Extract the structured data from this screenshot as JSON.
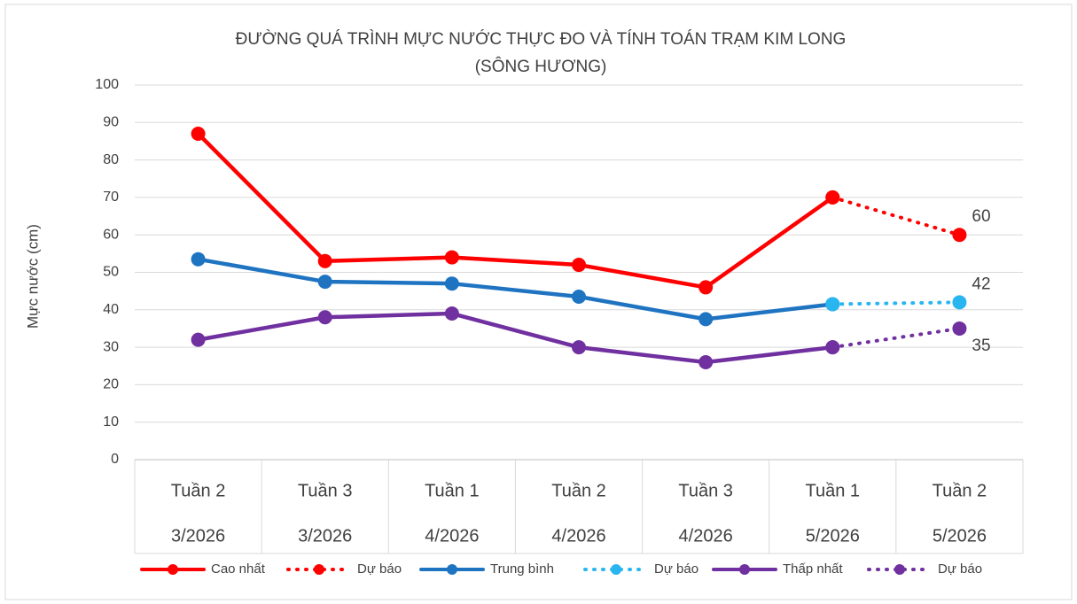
{
  "chart_data": {
    "type": "line",
    "title": [
      "ĐƯỜNG QUÁ TRÌNH MỰC NƯỚC THỰC ĐO VÀ TÍNH TOÁN TRẠM KIM LONG",
      "(SÔNG HƯƠNG)"
    ],
    "y_label": "Mực nước (cm)",
    "categories": [
      [
        "Tuần 2",
        "3/2026"
      ],
      [
        "Tuần 3",
        "3/2026"
      ],
      [
        "Tuần 1",
        "4/2026"
      ],
      [
        "Tuần 2",
        "4/2026"
      ],
      [
        "Tuần 3",
        "4/2026"
      ],
      [
        "Tuần 1",
        "5/2026"
      ],
      [
        "Tuần 2",
        "5/2026"
      ]
    ],
    "series": [
      {
        "name": "Cao nhất",
        "color": "#ff0000",
        "style": "solid",
        "values": [
          87,
          53,
          54,
          52,
          46,
          70,
          null
        ]
      },
      {
        "name": "Dự báo",
        "color": "#ff0000",
        "style": "dotted",
        "values": [
          null,
          null,
          null,
          null,
          null,
          70,
          60
        ]
      },
      {
        "name": "Trung bình",
        "color": "#1f74c2",
        "style": "solid",
        "values": [
          53.5,
          47.5,
          47,
          43.5,
          37.5,
          41.5,
          null
        ]
      },
      {
        "name": "Dự báo",
        "color": "#29b6f0",
        "style": "dotted",
        "values": [
          null,
          null,
          null,
          null,
          null,
          41.5,
          42
        ]
      },
      {
        "name": "Thấp nhất",
        "color": "#7030a0",
        "style": "solid",
        "values": [
          32,
          38,
          39,
          30,
          26,
          30,
          null
        ]
      },
      {
        "name": "Dự báo",
        "color": "#7030a0",
        "style": "dotted",
        "values": [
          null,
          null,
          null,
          null,
          null,
          30,
          35
        ]
      }
    ],
    "ylim": [
      0,
      100
    ],
    "yticks": [
      0,
      10,
      20,
      30,
      40,
      50,
      60,
      70,
      80,
      90,
      100
    ],
    "grid": true,
    "legend": "bottom"
  }
}
